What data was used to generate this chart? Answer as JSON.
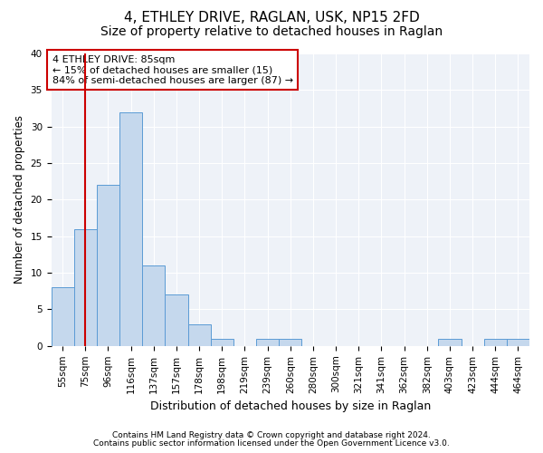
{
  "title1": "4, ETHLEY DRIVE, RAGLAN, USK, NP15 2FD",
  "title2": "Size of property relative to detached houses in Raglan",
  "xlabel": "Distribution of detached houses by size in Raglan",
  "ylabel": "Number of detached properties",
  "categories": [
    "55sqm",
    "75sqm",
    "96sqm",
    "116sqm",
    "137sqm",
    "157sqm",
    "178sqm",
    "198sqm",
    "219sqm",
    "239sqm",
    "260sqm",
    "280sqm",
    "300sqm",
    "321sqm",
    "341sqm",
    "362sqm",
    "382sqm",
    "403sqm",
    "423sqm",
    "444sqm",
    "464sqm"
  ],
  "values": [
    8,
    16,
    22,
    32,
    11,
    7,
    3,
    1,
    0,
    1,
    1,
    0,
    0,
    0,
    0,
    0,
    0,
    1,
    0,
    1,
    1
  ],
  "bar_color": "#c5d8ed",
  "bar_edge_color": "#5b9bd5",
  "redline_x": 1.0,
  "redline_color": "#cc0000",
  "annotation_text": "4 ETHLEY DRIVE: 85sqm\n← 15% of detached houses are smaller (15)\n84% of semi-detached houses are larger (87) →",
  "annotation_box_color": "white",
  "annotation_box_edge": "#cc0000",
  "ylim": [
    0,
    40
  ],
  "yticks": [
    0,
    5,
    10,
    15,
    20,
    25,
    30,
    35,
    40
  ],
  "footnote1": "Contains HM Land Registry data © Crown copyright and database right 2024.",
  "footnote2": "Contains public sector information licensed under the Open Government Licence v3.0.",
  "background_color": "#eef2f8",
  "title1_fontsize": 11,
  "title2_fontsize": 10,
  "xlabel_fontsize": 9,
  "ylabel_fontsize": 8.5,
  "tick_fontsize": 7.5,
  "annotation_fontsize": 8,
  "footnote_fontsize": 6.5
}
